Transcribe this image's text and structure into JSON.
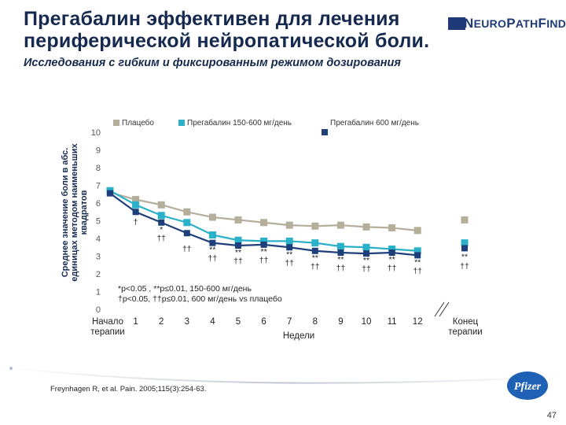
{
  "slide": {
    "title_line1": "Прегабалин эффективен для лечения",
    "title_line2": "периферической нейропатической боли.",
    "subtitle": "Исследования с гибким и фиксированным режимом дозирования",
    "logo_part1": "N",
    "logo_part2": "EURO",
    "logo_part3": "P",
    "logo_part4": "ATH",
    "logo_part5": "F",
    "logo_part6": "INDER",
    "pfizer_logo": "Pfizer",
    "footnote": "Freynhagen R, et al. Pain. 2005;115(3):254-63.",
    "page_number": "47"
  },
  "colors": {
    "placebo": "#b4ae9a",
    "pregabalin_flex": "#2ab0c8",
    "pregabalin_600": "#1f3f7a",
    "title": "#16294e"
  },
  "chart_data": {
    "type": "line",
    "title": "",
    "ylabel_line1": "Среднее значение боли в абс.",
    "ylabel_line2": "единицах методом наименьших",
    "ylabel_line3": "квадратов",
    "xlabel": "Недели",
    "ylim": [
      0,
      10
    ],
    "y_ticks": [
      "0",
      "1",
      "2",
      "3",
      "4",
      "5",
      "6",
      "7",
      "8",
      "9",
      "10"
    ],
    "x": [
      0,
      1,
      2,
      3,
      4,
      5,
      6,
      7,
      8,
      9,
      10,
      11,
      12
    ],
    "x_tick_labels": [
      "Начало",
      "1",
      "2",
      "3",
      "4",
      "5",
      "6",
      "7",
      "8",
      "9",
      "10",
      "11",
      "12"
    ],
    "x_start_label_line2": "терапии",
    "endpoint_label_line1": "Конец",
    "endpoint_label_line2": "терапии",
    "legend": [
      {
        "name": "Плацебо",
        "color_key": "placebo"
      },
      {
        "name": "Прегабалин 150-600 мг/день",
        "color_key": "pregabalin_flex"
      },
      {
        "name": "Прегабалин 600 мг/день",
        "color_key": "pregabalin_600"
      }
    ],
    "series": [
      {
        "name": "Плацебо",
        "values": [
          6.6,
          6.2,
          5.9,
          5.5,
          5.2,
          5.05,
          4.9,
          4.75,
          4.7,
          4.75,
          4.65,
          4.6,
          4.45
        ],
        "endpoint": 5.05
      },
      {
        "name": "Прегабалин 150-600 мг/день",
        "values": [
          6.7,
          5.9,
          5.3,
          4.9,
          4.2,
          3.9,
          3.85,
          3.85,
          3.75,
          3.55,
          3.5,
          3.4,
          3.3
        ],
        "endpoint": 3.75
      },
      {
        "name": "Прегабалин 600 мг/день",
        "values": [
          6.55,
          5.5,
          4.9,
          4.3,
          3.75,
          3.6,
          3.65,
          3.5,
          3.3,
          3.2,
          3.15,
          3.2,
          3.05
        ],
        "endpoint": 3.45
      }
    ],
    "significance_upper": [
      "",
      "",
      "*",
      "",
      "**",
      "**",
      "**",
      "**",
      "**",
      "**",
      "**",
      "**",
      "**"
    ],
    "significance_lower": [
      "",
      "†",
      "††",
      "††",
      "††",
      "††",
      "††",
      "††",
      "††",
      "††",
      "††",
      "††",
      "††"
    ],
    "endpoint_significance_upper": "**",
    "endpoint_significance_lower": "††",
    "note_line1": "*p<0.05 , **p≤0.01, 150-600 мг/день",
    "note_line2": "†p<0.05, ††p≤0.01, 600 мг/день vs плацебо"
  }
}
